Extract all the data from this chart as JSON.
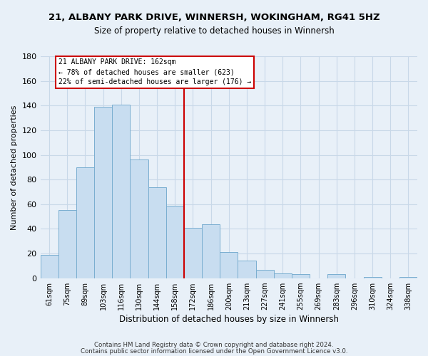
{
  "title": "21, ALBANY PARK DRIVE, WINNERSH, WOKINGHAM, RG41 5HZ",
  "subtitle": "Size of property relative to detached houses in Winnersh",
  "xlabel": "Distribution of detached houses by size in Winnersh",
  "ylabel": "Number of detached properties",
  "bar_labels": [
    "61sqm",
    "75sqm",
    "89sqm",
    "103sqm",
    "116sqm",
    "130sqm",
    "144sqm",
    "158sqm",
    "172sqm",
    "186sqm",
    "200sqm",
    "213sqm",
    "227sqm",
    "241sqm",
    "255sqm",
    "269sqm",
    "283sqm",
    "296sqm",
    "310sqm",
    "324sqm",
    "338sqm"
  ],
  "bar_values": [
    19,
    55,
    90,
    139,
    141,
    96,
    74,
    59,
    41,
    44,
    21,
    14,
    7,
    4,
    3,
    0,
    3,
    0,
    1,
    0,
    1
  ],
  "bar_color": "#c8ddf0",
  "bar_edge_color": "#7aaed0",
  "vline_x": 7.5,
  "vline_color": "#cc0000",
  "annotation_title": "21 ALBANY PARK DRIVE: 162sqm",
  "annotation_line1": "← 78% of detached houses are smaller (623)",
  "annotation_line2": "22% of semi-detached houses are larger (176) →",
  "annotation_box_facecolor": "#ffffff",
  "annotation_box_edgecolor": "#cc0000",
  "ylim": [
    0,
    180
  ],
  "yticks": [
    0,
    20,
    40,
    60,
    80,
    100,
    120,
    140,
    160,
    180
  ],
  "grid_color": "#c8d8e8",
  "bg_color": "#e8f0f8",
  "footnote1": "Contains HM Land Registry data © Crown copyright and database right 2024.",
  "footnote2": "Contains public sector information licensed under the Open Government Licence v3.0."
}
